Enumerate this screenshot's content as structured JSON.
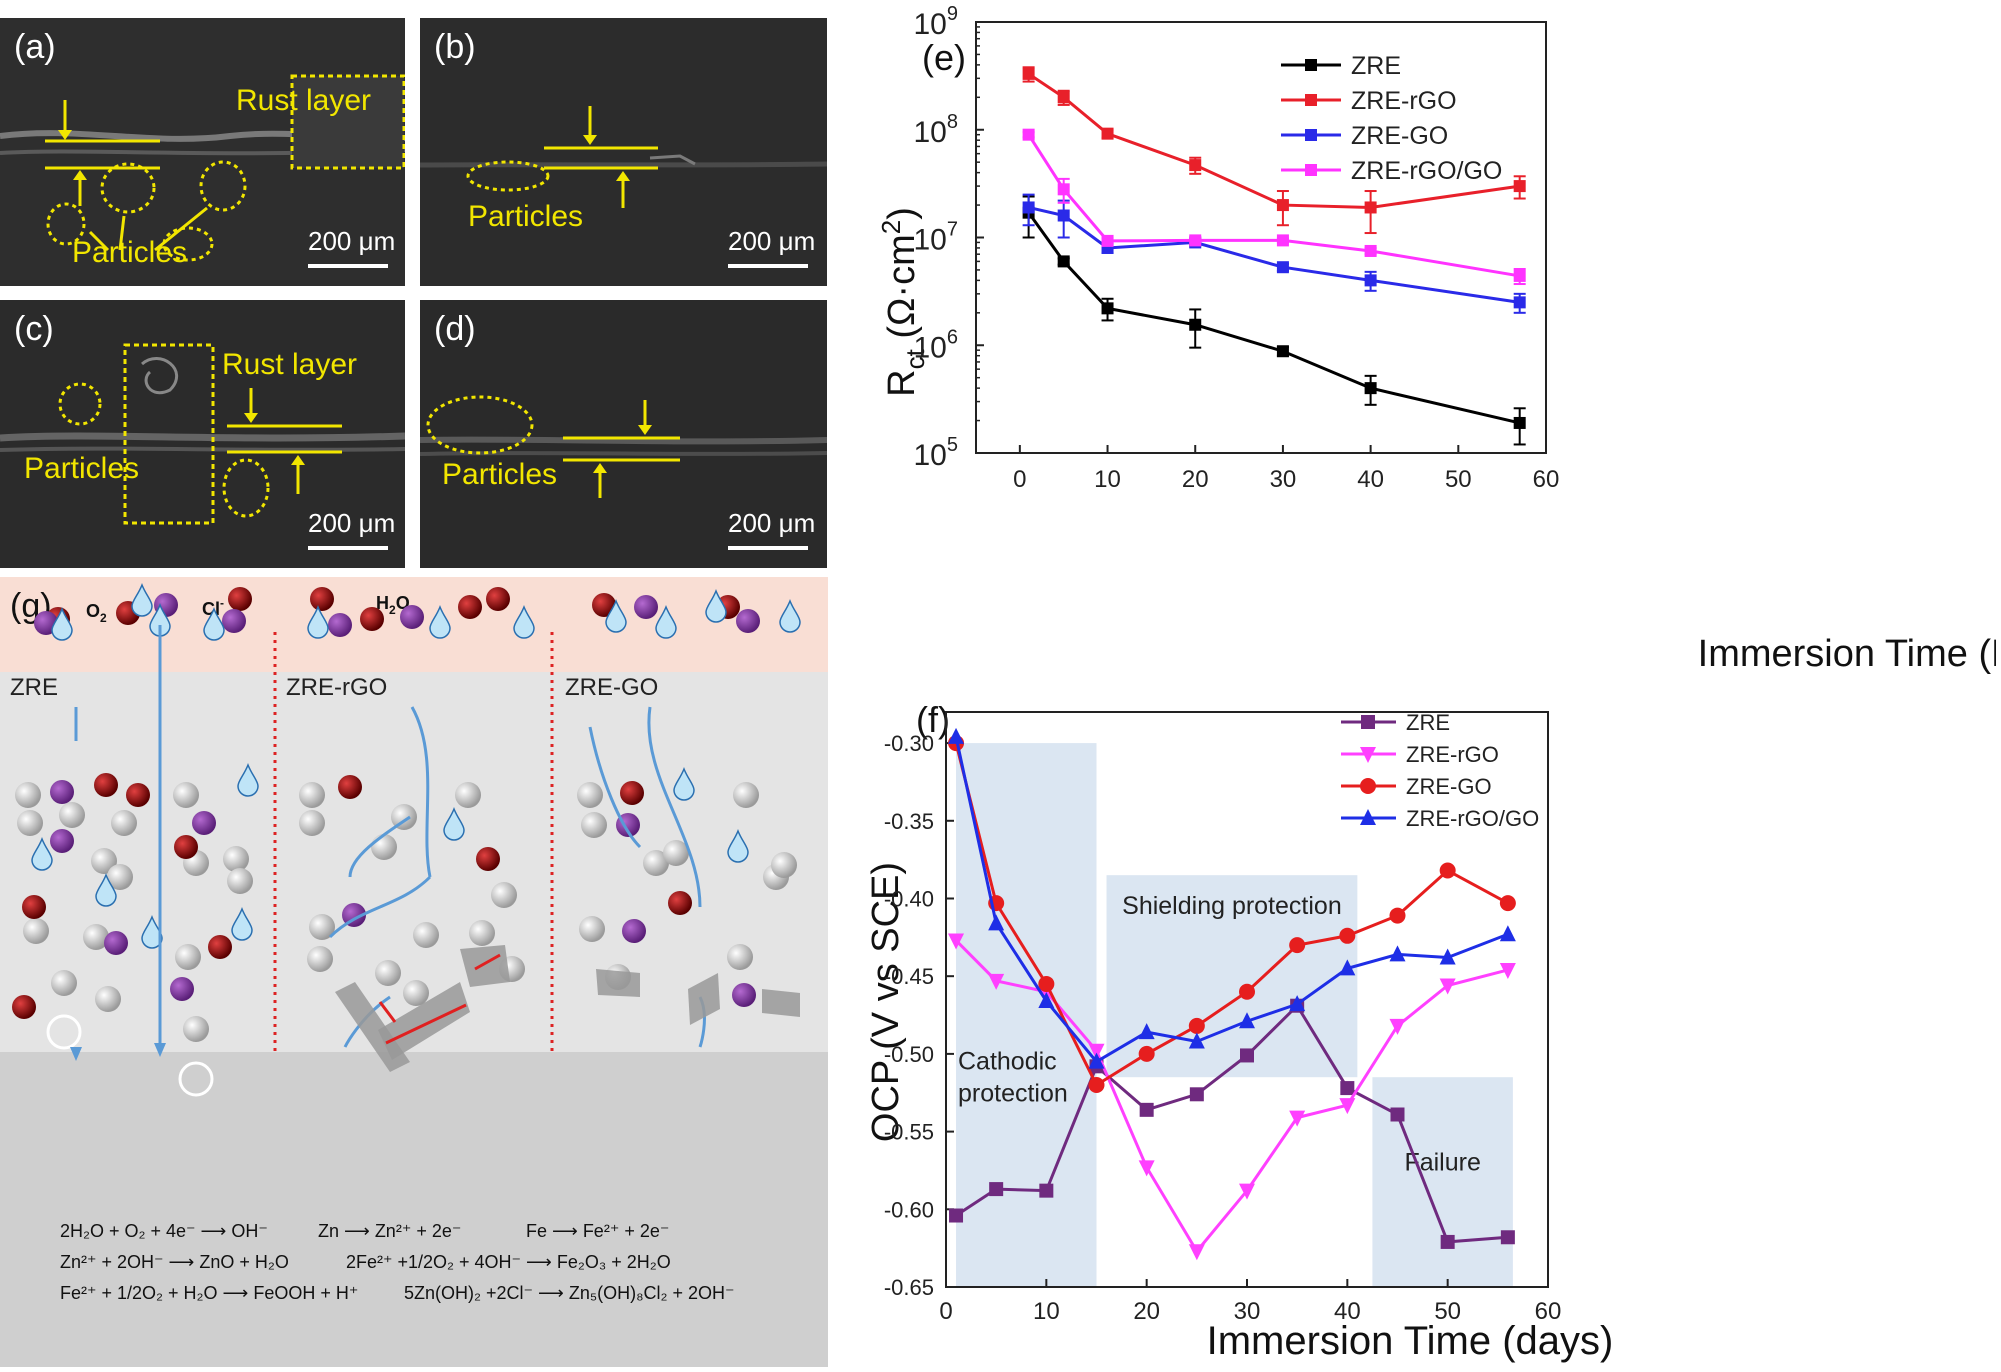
{
  "sem": {
    "a": {
      "label": "(a)",
      "rust": "Rust layer",
      "particles": "Particles",
      "scale": "200 μm"
    },
    "b": {
      "label": "(b)",
      "particles": "Particles",
      "scale": "200 μm"
    },
    "c": {
      "label": "(c)",
      "rust": "Rust layer",
      "particles": "Particles",
      "scale": "200 μm"
    },
    "d": {
      "label": "(d)",
      "particles": "Particles",
      "scale": "200 μm"
    }
  },
  "schematic": {
    "label": "(g)",
    "o2": "O",
    "o2_sub": "2",
    "cl": "Cl",
    "cl_sup": "-",
    "h2o": "H",
    "h2o_sub": "2",
    "h2o_end": "O",
    "sections": [
      "ZRE",
      "ZRE-rGO",
      "ZRE-GO"
    ],
    "equations": [
      "2H₂O + O₂ + 4e⁻ ⟶ OH⁻",
      "Zn ⟶ Zn²⁺ + 2e⁻",
      "Fe ⟶ Fe²⁺ + 2e⁻",
      "Zn²⁺ + 2OH⁻ ⟶ ZnO + H₂O",
      "2Fe²⁺ +1/2O₂ + 4OH⁻ ⟶ Fe₂O₃ + 2H₂O",
      "Fe²⁺ + 1/2O₂ + H₂O ⟶ FeOOH + H⁺",
      "5Zn(OH)₂ +2Cl⁻ ⟶ Zn₅(OH)₈Cl₂ + 2OH⁻"
    ]
  },
  "colors": {
    "zre": "#000000",
    "zre_rgo": "#e8202a",
    "zre_go": "#2a2ae8",
    "zre_rgo_go": "#ff33ff",
    "purple": "#6f2a7f",
    "magenta": "#ff40ff",
    "red": "#e61e1e",
    "blue": "#1e2ee6",
    "yellow": "#f2e600"
  },
  "chart_data": [
    {
      "id": "e",
      "panel_label": "(e)",
      "type": "line",
      "y_scale": "log",
      "xlabel": "Immersion Time (Days)",
      "ylabel_main": "R",
      "ylabel_sub": "ct",
      "ylabel_unit": " (Ω·cm",
      "ylabel_sup": "2",
      "ylabel_close": ")",
      "xlim": [
        -5,
        60
      ],
      "ylim": [
        100000,
        1000000000
      ],
      "xticks": [
        0,
        10,
        20,
        30,
        40,
        50,
        60
      ],
      "xtick_labels": [
        "0",
        "10",
        "20",
        "30",
        "40",
        "50",
        "60"
      ],
      "ytick_values": [
        100000,
        1000000,
        10000000,
        100000000,
        1000000000
      ],
      "ytick_base": "10",
      "ytick_exps": [
        "5",
        "6",
        "7",
        "8",
        "9"
      ],
      "legend_position": "top-right",
      "series": [
        {
          "name": "ZRE",
          "color": "#000000",
          "x": [
            1,
            5,
            10,
            20,
            30,
            40,
            57
          ],
          "y": [
            17000000,
            6000000,
            2200000,
            1550000,
            880000,
            400000,
            190000
          ],
          "err_lo": [
            7000000,
            400000,
            500000,
            600000,
            80000,
            120000,
            70000
          ],
          "err_hi": [
            7000000,
            400000,
            500000,
            600000,
            80000,
            120000,
            70000
          ]
        },
        {
          "name": "ZRE-rGO",
          "color": "#e8202a",
          "x": [
            1,
            5,
            10,
            20,
            30,
            40,
            57
          ],
          "y": [
            330000000,
            200000000,
            92000000,
            47000000,
            20000000,
            19000000,
            30000000
          ],
          "err_lo": [
            50000000,
            30000000,
            8000000,
            8000000,
            7000000,
            8000000,
            7000000
          ],
          "err_hi": [
            50000000,
            30000000,
            8000000,
            8000000,
            7000000,
            8000000,
            7000000
          ]
        },
        {
          "name": "ZRE-GO",
          "color": "#2a2ae8",
          "x": [
            1,
            5,
            10,
            20,
            30,
            40,
            57
          ],
          "y": [
            19000000,
            16000000,
            8000000,
            9000000,
            5300000,
            4000000,
            2500000
          ],
          "err_lo": [
            6000000,
            6000000,
            800000,
            600000,
            400000,
            800000,
            500000
          ],
          "err_hi": [
            6000000,
            6000000,
            800000,
            600000,
            400000,
            800000,
            500000
          ]
        },
        {
          "name": "ZRE-rGO/GO",
          "color": "#ff33ff",
          "x": [
            1,
            5,
            10,
            20,
            30,
            40,
            57
          ],
          "y": [
            90000000,
            28000000,
            9300000,
            9400000,
            9400000,
            7500000,
            4400000
          ],
          "err_lo": [
            5000000,
            7000000,
            600000,
            500000,
            400000,
            500000,
            700000
          ],
          "err_hi": [
            5000000,
            7000000,
            600000,
            500000,
            400000,
            500000,
            700000
          ]
        }
      ]
    },
    {
      "id": "f",
      "panel_label": "(f)",
      "type": "line",
      "xlabel": "Immersion Time (days)",
      "ylabel": "OCP (V vs SCE)",
      "xlim": [
        0,
        60
      ],
      "ylim": [
        -0.65,
        -0.28
      ],
      "xticks": [
        0,
        10,
        20,
        30,
        40,
        50,
        60
      ],
      "xtick_labels": [
        "0",
        "10",
        "20",
        "30",
        "40",
        "50",
        "60"
      ],
      "yticks": [
        -0.65,
        -0.6,
        -0.55,
        -0.5,
        -0.45,
        -0.4,
        -0.35,
        -0.3
      ],
      "ytick_labels": [
        "-0.65",
        "-0.60",
        "-0.55",
        "-0.50",
        "-0.45",
        "-0.40",
        "-0.35",
        "-0.30"
      ],
      "legend_position": "top-right",
      "regions": [
        {
          "label_lines": [
            "Cathodic",
            "protection"
          ],
          "x0": 1,
          "x1": 15,
          "y0": -0.65,
          "y1": -0.3
        },
        {
          "label_lines": [
            "Shielding protection"
          ],
          "x0": 16,
          "x1": 41,
          "y0": -0.515,
          "y1": -0.385
        },
        {
          "label_lines": [
            "Failure"
          ],
          "x0": 42.5,
          "x1": 56.5,
          "y0": -0.65,
          "y1": -0.515
        }
      ],
      "series": [
        {
          "name": "ZRE",
          "color": "#6f2a7f",
          "marker": "square",
          "x": [
            1,
            5,
            10,
            15,
            20,
            25,
            30,
            35,
            40,
            45,
            50,
            56
          ],
          "y": [
            -0.604,
            -0.587,
            -0.588,
            -0.508,
            -0.536,
            -0.526,
            -0.501,
            -0.469,
            -0.522,
            -0.539,
            -0.621,
            -0.618
          ]
        },
        {
          "name": "ZRE-rGO",
          "color": "#ff40ff",
          "marker": "triangle-down",
          "x": [
            1,
            5,
            10,
            15,
            20,
            25,
            30,
            35,
            40,
            45,
            50,
            56
          ],
          "y": [
            -0.427,
            -0.453,
            -0.46,
            -0.498,
            -0.573,
            -0.627,
            -0.588,
            -0.541,
            -0.533,
            -0.482,
            -0.456,
            -0.446
          ]
        },
        {
          "name": "ZRE-GO",
          "color": "#e61e1e",
          "marker": "circle",
          "x": [
            1,
            5,
            10,
            15,
            20,
            25,
            30,
            35,
            40,
            45,
            50,
            56
          ],
          "y": [
            -0.3,
            -0.403,
            -0.455,
            -0.52,
            -0.5,
            -0.482,
            -0.46,
            -0.43,
            -0.424,
            -0.411,
            -0.382,
            -0.403
          ]
        },
        {
          "name": "ZRE-rGO/GO",
          "color": "#1e2ee6",
          "marker": "triangle-up",
          "x": [
            1,
            5,
            10,
            15,
            20,
            25,
            30,
            35,
            40,
            45,
            50,
            56
          ],
          "y": [
            -0.296,
            -0.416,
            -0.466,
            -0.505,
            -0.486,
            -0.492,
            -0.479,
            -0.468,
            -0.445,
            -0.436,
            -0.438,
            -0.423
          ]
        }
      ]
    }
  ]
}
